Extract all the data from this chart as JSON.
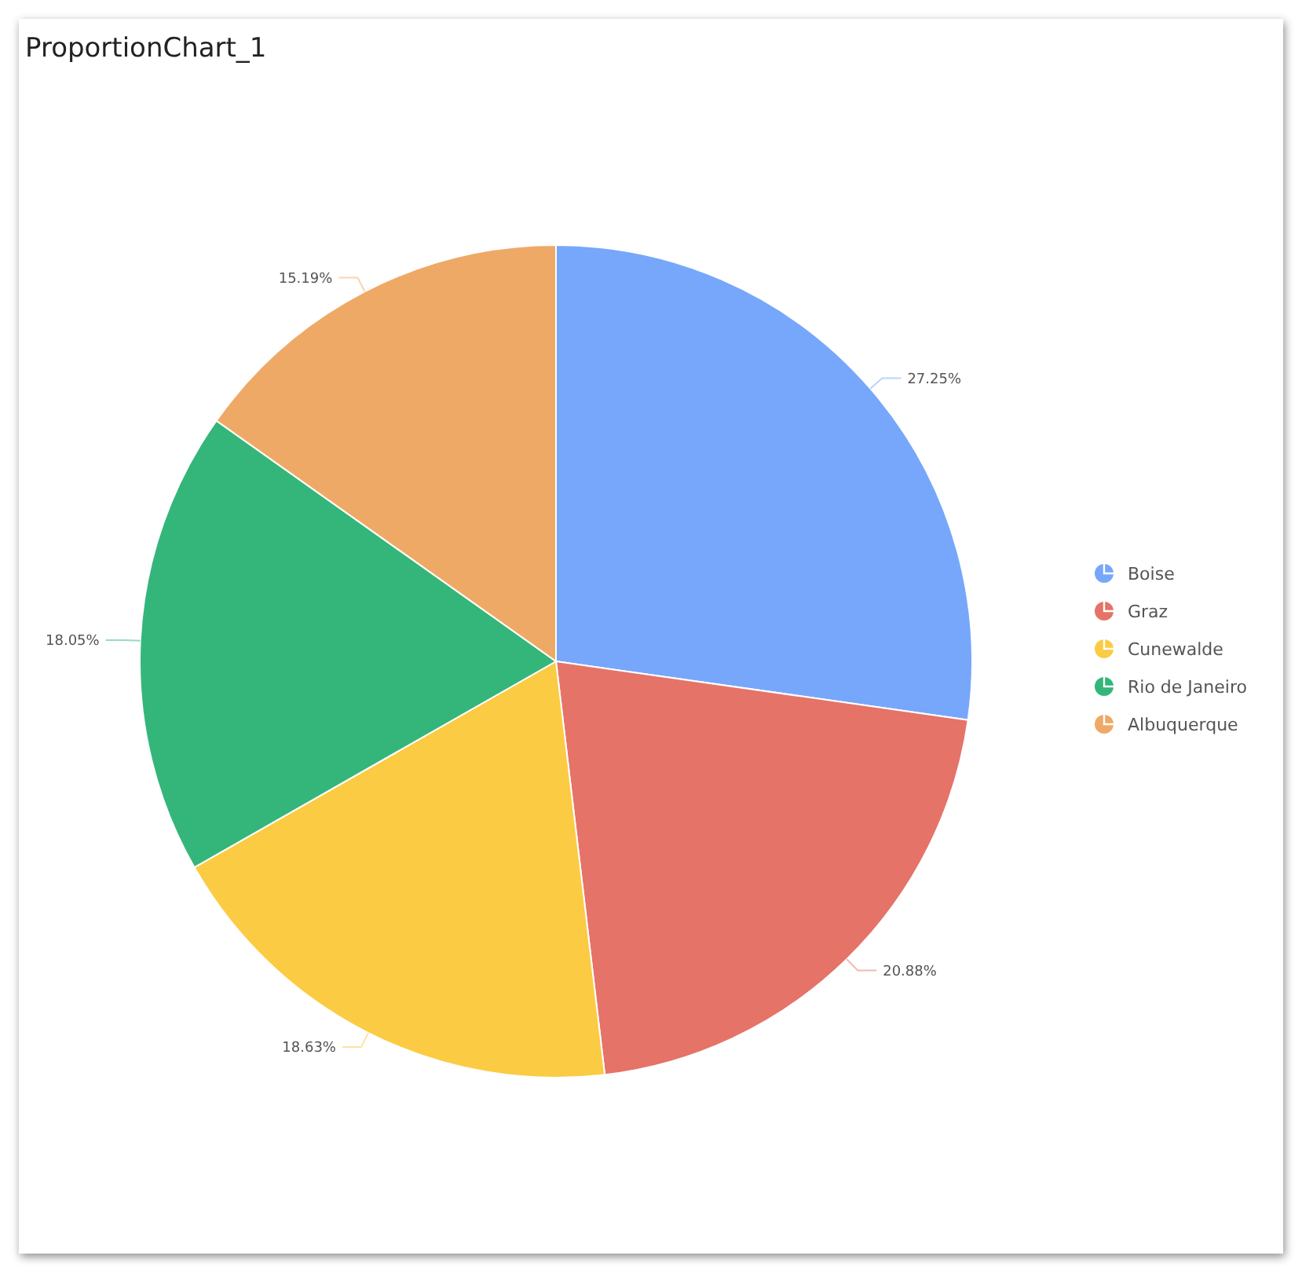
{
  "chart_data": {
    "type": "pie",
    "title": "ProportionChart_1",
    "categories": [
      "Boise",
      "Graz",
      "Cunewalde",
      "Rio de Janeiro",
      "Albuquerque"
    ],
    "values": [
      27.25,
      20.88,
      18.63,
      18.05,
      15.19
    ],
    "colors": [
      "#77a7fb",
      "#e57368",
      "#fbcb43",
      "#34b67a",
      "#efa966"
    ],
    "value_labels": [
      "27.25%",
      "20.88%",
      "18.63%",
      "18.05%",
      "15.19%"
    ],
    "legend": "right"
  }
}
